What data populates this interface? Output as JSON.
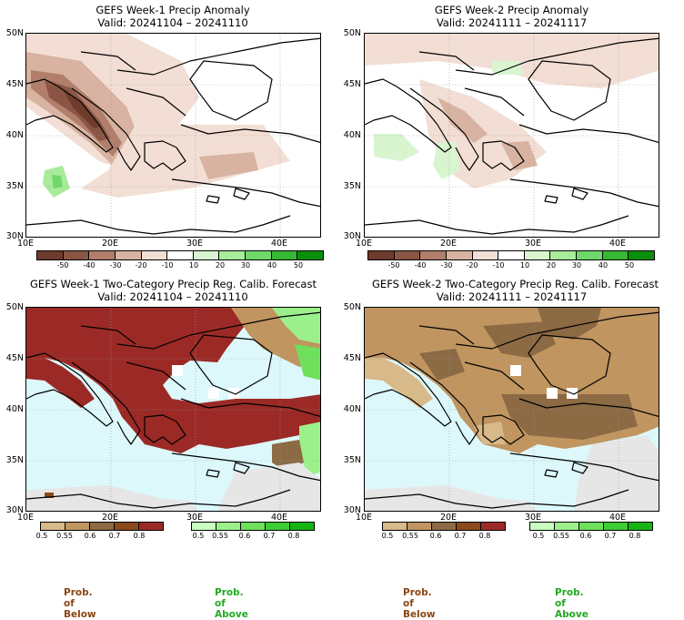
{
  "panels": [
    {
      "id": "w1-anom",
      "title": "GEFS Week-1 Precip Anomaly",
      "valid": "Valid: 20241104 – 20241110",
      "colorbar_ticks": [
        "-50",
        "-40",
        "-30",
        "-20",
        "-10",
        "10",
        "20",
        "30",
        "40",
        "50"
      ]
    },
    {
      "id": "w2-anom",
      "title": "GEFS Week-2 Precip Anomaly",
      "valid": "Valid: 20241111 – 20241117",
      "colorbar_ticks": [
        "-50",
        "-40",
        "-30",
        "-20",
        "-10",
        "10",
        "20",
        "30",
        "40",
        "50"
      ]
    },
    {
      "id": "w1-prob",
      "title": "GEFS Week-1 Two-Category Precip Reg. Calib. Forecast",
      "valid": "Valid: 20241104 – 20241110"
    },
    {
      "id": "w2-prob",
      "title": "GEFS Week-2 Two-Category Precip Reg. Calib. Forecast",
      "valid": "Valid: 20241111 – 20241117"
    }
  ],
  "axes": {
    "lat_labels": [
      "50N",
      "45N",
      "40N",
      "35N",
      "30N"
    ],
    "lon_labels": [
      "10E",
      "20E",
      "30E",
      "40E"
    ]
  },
  "prob_colorbars": {
    "below_ticks": [
      "0.5",
      "0.55",
      "0.6",
      "0.7",
      "0.8"
    ],
    "above_ticks": [
      "0.5",
      "0.55",
      "0.6",
      "0.7",
      "0.8"
    ],
    "below_label": "Prob. of Below",
    "above_label": "Prob. of Above"
  },
  "colors": {
    "anom_scale": [
      "#6e3b2c",
      "#8a5544",
      "#b07e6b",
      "#d8b3a1",
      "#f2ded4",
      "#ffffff",
      "#d8f5d0",
      "#a8eb9a",
      "#6fd86a",
      "#36b834",
      "#0a8f0a"
    ],
    "below_scale": [
      "#d7b98a",
      "#c09560",
      "#8b6a44",
      "#8a4a1c",
      "#9b2a26"
    ],
    "above_scale": [
      "#c8ffc0",
      "#9cf08c",
      "#6ee05c",
      "#3ccc34",
      "#14b414"
    ],
    "sea": "#ddf8fb",
    "dry_region": "#e6e6e6",
    "below_label": "#8b4513",
    "above_label": "#22aa22"
  }
}
